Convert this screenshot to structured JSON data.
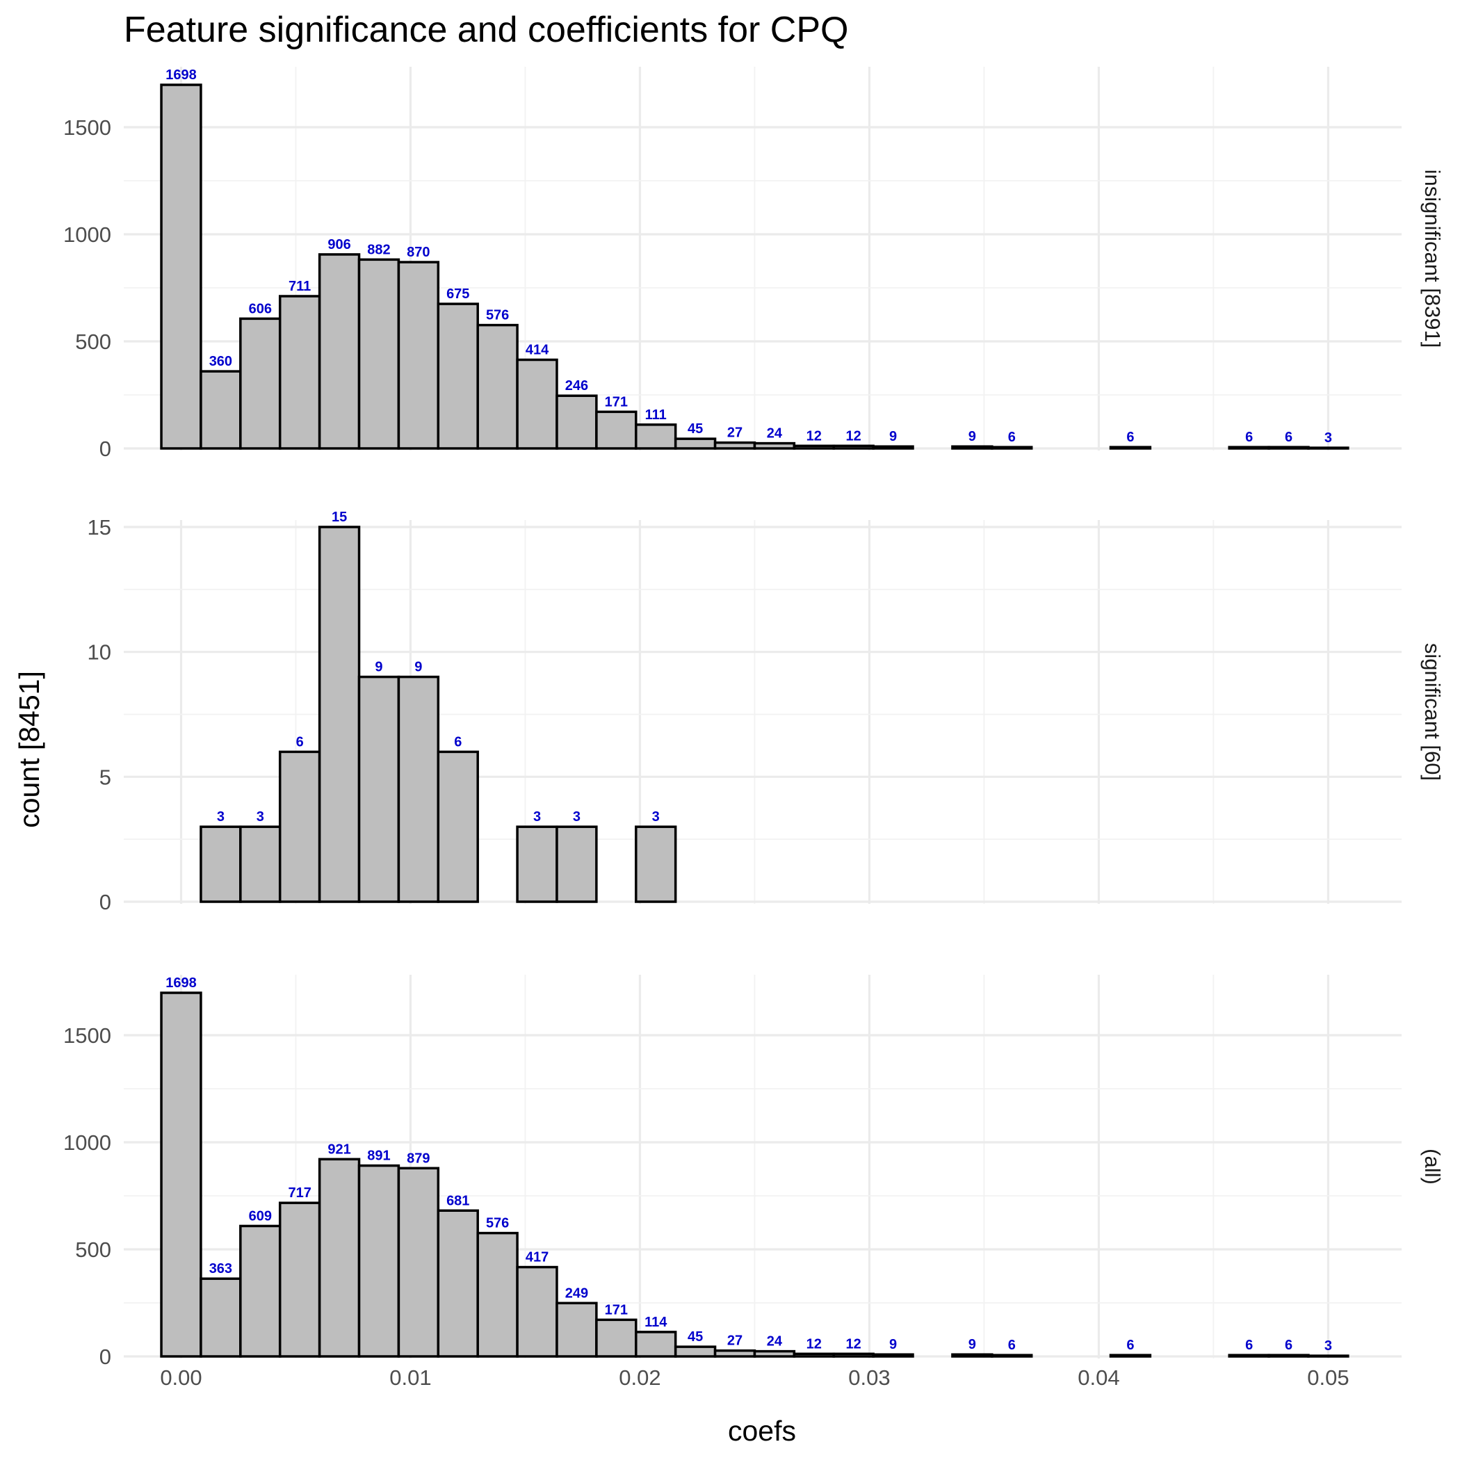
{
  "chart_data": {
    "type": "bar",
    "title": "Feature significance and coefficients for CPQ",
    "xlabel": "coefs",
    "ylabel": "count [8451]",
    "xlim": [
      -0.0025,
      0.0532
    ],
    "x_ticks": [
      "0.00",
      "0.01",
      "0.02",
      "0.03",
      "0.04",
      "0.05"
    ],
    "x_tick_values": [
      0.0,
      0.01,
      0.02,
      0.03,
      0.04,
      0.05
    ],
    "bin_width": 0.001724,
    "bin_centers": [
      0.0,
      0.001724,
      0.003448,
      0.005172,
      0.006897,
      0.008621,
      0.010345,
      0.012069,
      0.013793,
      0.015517,
      0.017241,
      0.018966,
      0.02069,
      0.022414,
      0.024138,
      0.025862,
      0.027586,
      0.02931,
      0.031034,
      0.032759,
      0.034483,
      0.036207,
      0.037931,
      0.039655,
      0.041379,
      0.043103,
      0.044828,
      0.046552,
      0.048276,
      0.05
    ],
    "grid": true,
    "legend": "none",
    "bar_fill": "#bebebe",
    "bar_stroke": "#000000",
    "label_color": "#0000cc",
    "panels": [
      {
        "strip": "insignificant [8391]",
        "ylim": [
          0,
          1750
        ],
        "y_ticks": [
          "0",
          "500",
          "1000",
          "1500"
        ],
        "y_tick_values": [
          0,
          500,
          1000,
          1500
        ],
        "values": [
          1698,
          360,
          606,
          711,
          906,
          882,
          870,
          675,
          576,
          414,
          246,
          171,
          111,
          45,
          27,
          24,
          12,
          12,
          9,
          0,
          9,
          6,
          0,
          0,
          6,
          0,
          0,
          6,
          6,
          3
        ],
        "labels": [
          "1698",
          "360",
          "606",
          "711",
          "906",
          "882",
          "870",
          "675",
          "576",
          "414",
          "246",
          "171",
          "111",
          "45",
          "27",
          "24",
          "12",
          "12",
          "9",
          "",
          "9",
          "6",
          "",
          "",
          "6",
          "",
          "",
          "6",
          "6",
          "3"
        ]
      },
      {
        "strip": "significant [60]",
        "ylim": [
          0,
          15
        ],
        "y_ticks": [
          "0",
          "5",
          "10",
          "15"
        ],
        "y_tick_values": [
          0,
          5,
          10,
          15
        ],
        "values": [
          0,
          3,
          3,
          6,
          15,
          9,
          9,
          6,
          0,
          3,
          3,
          0,
          3,
          0,
          0,
          0,
          0,
          0,
          0,
          0,
          0,
          0,
          0,
          0,
          0,
          0,
          0,
          0,
          0,
          0
        ],
        "labels": [
          "",
          "3",
          "3",
          "6",
          "15",
          "9",
          "9",
          "6",
          "",
          "3",
          "3",
          "",
          "3",
          "",
          "",
          "",
          "",
          "",
          "",
          "",
          "",
          "",
          "",
          "",
          "",
          "",
          "",
          "",
          "",
          ""
        ]
      },
      {
        "strip": "(all)",
        "ylim": [
          0,
          1750
        ],
        "y_ticks": [
          "0",
          "500",
          "1000",
          "1500"
        ],
        "y_tick_values": [
          0,
          500,
          1000,
          1500
        ],
        "values": [
          1698,
          363,
          609,
          717,
          921,
          891,
          879,
          681,
          576,
          417,
          249,
          171,
          114,
          45,
          27,
          24,
          12,
          12,
          9,
          0,
          9,
          6,
          0,
          0,
          6,
          0,
          0,
          6,
          6,
          3
        ],
        "labels": [
          "1698",
          "363",
          "609",
          "717",
          "921",
          "891",
          "879",
          "681",
          "576",
          "417",
          "249",
          "171",
          "114",
          "45",
          "27",
          "24",
          "12",
          "12",
          "9",
          "",
          "9",
          "6",
          "",
          "",
          "6",
          "",
          "",
          "6",
          "6",
          "3"
        ]
      }
    ]
  }
}
